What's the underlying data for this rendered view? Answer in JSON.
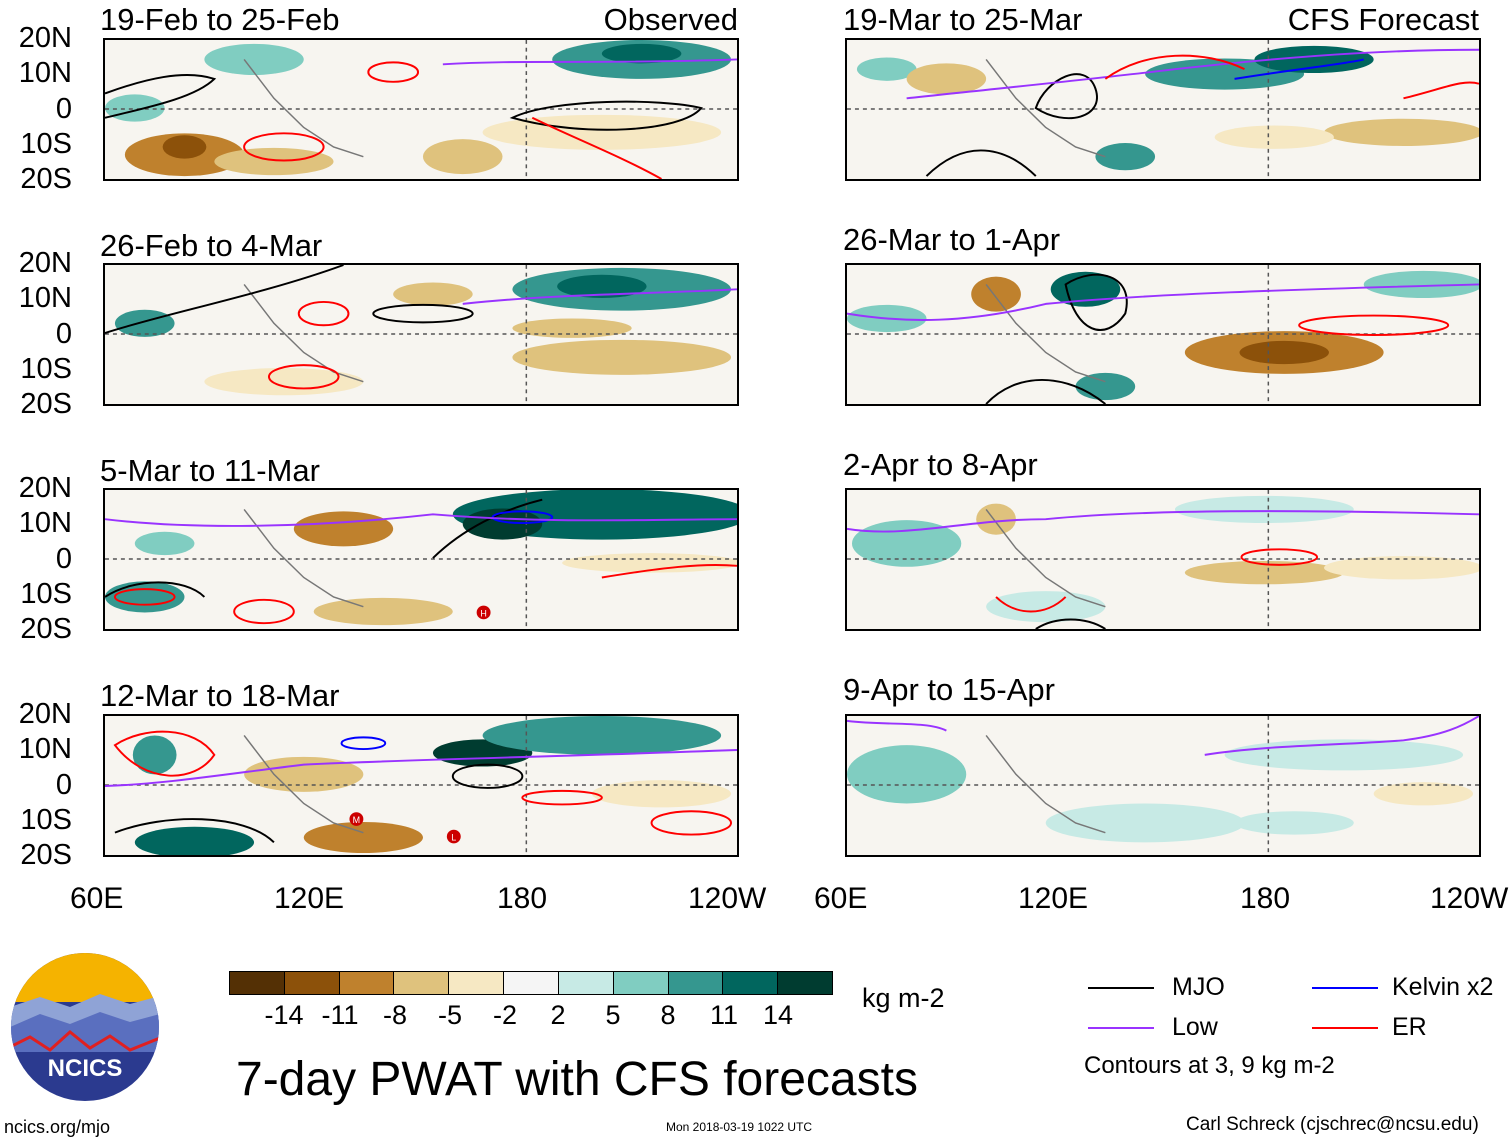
{
  "panels_left": [
    {
      "title": "19-Feb to 25-Feb",
      "tag": "Observed"
    },
    {
      "title": "26-Feb to 4-Mar",
      "tag": ""
    },
    {
      "title": "5-Mar to 11-Mar",
      "tag": ""
    },
    {
      "title": "12-Mar to 18-Mar",
      "tag": ""
    }
  ],
  "panels_right": [
    {
      "title": "19-Mar to 25-Mar",
      "tag": "CFS Forecast"
    },
    {
      "title": "26-Mar to 1-Apr",
      "tag": ""
    },
    {
      "title": "2-Apr to 8-Apr",
      "tag": ""
    },
    {
      "title": "9-Apr to 15-Apr",
      "tag": ""
    }
  ],
  "lat_labels": [
    "20N",
    "10N",
    "0",
    "10S",
    "20S"
  ],
  "lon_labels": [
    "60E",
    "120E",
    "180",
    "120W"
  ],
  "colorbar": {
    "colors": [
      "#543005",
      "#8c510a",
      "#bf812d",
      "#dfc27d",
      "#f6e8c3",
      "#f5f5f5",
      "#c7eae5",
      "#80cdc1",
      "#35978f",
      "#01665e",
      "#003c30"
    ],
    "labels": [
      "-14",
      "-11",
      "-8",
      "-5",
      "-2",
      "2",
      "5",
      "8",
      "11",
      "14"
    ],
    "units": "kg m-2"
  },
  "title": "7-day PWAT with CFS forecasts",
  "legend": [
    {
      "name": "MJO",
      "color": "#000000"
    },
    {
      "name": "Kelvin x2",
      "color": "#0000ff"
    },
    {
      "name": "Low",
      "color": "#9933ff"
    },
    {
      "name": "ER",
      "color": "#ff0000"
    }
  ],
  "contour_note": "Contours at 3, 9 kg m-2",
  "logo_text": "NCICS",
  "footer": {
    "left": "ncics.org/mjo",
    "middle": "Mon 2018-03-19 1022 UTC",
    "right": "Carl Schreck (cjschrec@ncsu.edu)"
  },
  "tc_markers": [
    "H",
    "M",
    "L"
  ]
}
